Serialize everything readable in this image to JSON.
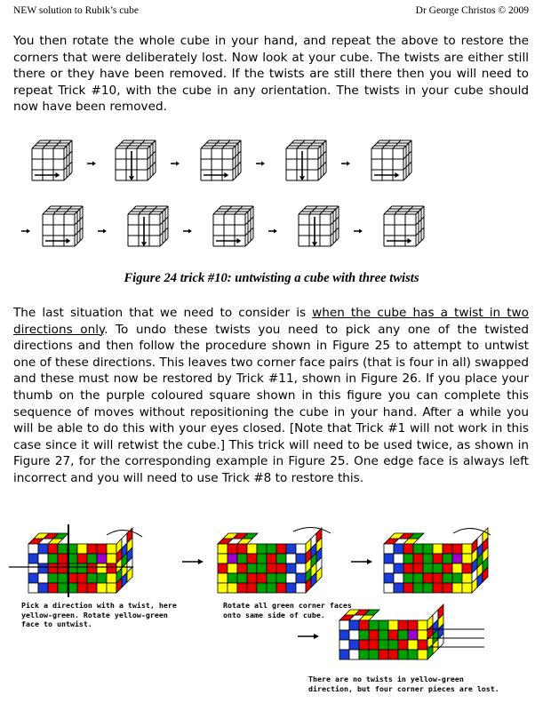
{
  "header": {
    "left": "NEW solution to Rubik’s cube",
    "right": "Dr George Christos © 2009"
  },
  "para1": "You then rotate the whole cube in your hand, and repeat the above to restore the corners that were deliberately lost. Now look at your cube. The twists are either still there or they have been removed.  If the twists are still there then you will need to repeat Trick #10, with the cube in any orientation. The twists in your cube should now have been removed.",
  "figure24": {
    "caption": "Figure 24 trick #10: untwisting a cube with three twists",
    "row1": [
      "right",
      "down",
      "right",
      "down",
      "right"
    ],
    "row2": [
      "right",
      "down",
      "right",
      "down",
      "right"
    ]
  },
  "para2": {
    "before": "The last situation that we need to consider is ",
    "underlined": "when the cube has a twist in two directions only",
    "after": ". To undo these twists you need to pick any one of the twisted directions and then follow the procedure shown in Figure 25 to attempt to untwist one of these directions. This leaves two corner face pairs (that is four in all) swapped and these must now be restored by Trick #11, shown in Figure 26.  If you place your thumb on the purple coloured square shown in this figure you can complete this sequence of moves without repositioning the cube in your hand. After a while you will be able to do this with your eyes closed. [Note that Trick #1 will not work in this case since it will retwist the cube.]  This trick will need to be used twice, as shown in Figure 27, for the corresponding example in Figure 25.  One edge face is always left incorrect and you will need to use Trick #8 to restore this."
  },
  "figure25": {
    "label1": "Pick a direction with a twist, here\nyellow-green. Rotate yellow-green\nface to untwist.",
    "label2": "Rotate all green corner faces\nonto same side of cube.",
    "label3": "There are no twists in yellow-green\ndirection, but four corner pieces are lost.",
    "colors": {
      "red": "#e60000",
      "green": "#00a000",
      "yellow": "#ffff00",
      "blue": "#1a3cd8",
      "white": "#ffffff",
      "orange": "#ff8c00",
      "purple": "#9a00d0"
    }
  }
}
